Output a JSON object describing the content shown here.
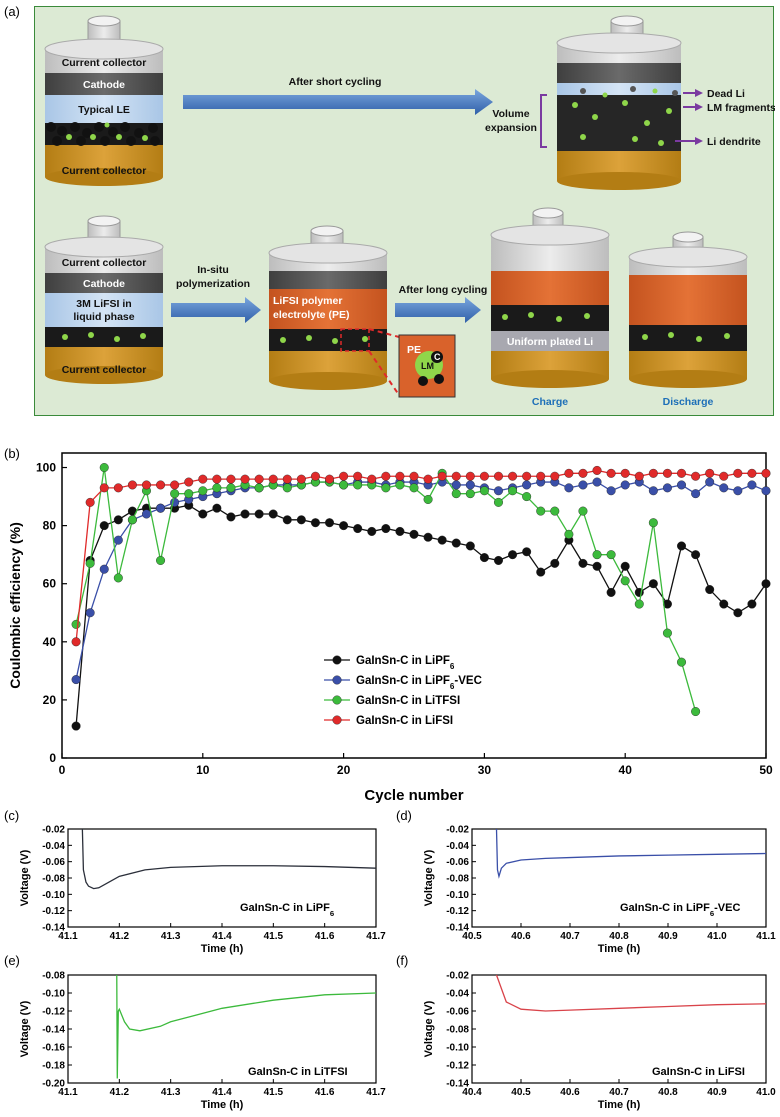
{
  "panels": {
    "a": "(a)",
    "b": "(b)",
    "c": "(c)",
    "d": "(d)",
    "e": "(e)",
    "f": "(f)"
  },
  "schematic": {
    "cell1": {
      "current_collector_top": "Current collector",
      "cathode": "Cathode",
      "electrolyte": "Typical LE",
      "current_collector_bottom": "Current collector"
    },
    "arrow1": "After short cycling",
    "cell2": {
      "volume_expansion_1": "Volume",
      "volume_expansion_2": "expansion",
      "dead_li": "Dead Li",
      "lm_fragments": "LM fragments",
      "li_dendrite": "Li dendrite"
    },
    "cell3": {
      "current_collector_top": "Current collector",
      "cathode": "Cathode",
      "electrolyte_1": "3M LiFSI in",
      "electrolyte_2": "liquid phase",
      "current_collector_bottom": "Current collector"
    },
    "arrow2_1": "In-situ",
    "arrow2_2": "polymerization",
    "cell4": {
      "electrolyte_1": "LiFSI polymer",
      "electrolyte_2": "electrolyte (PE)",
      "inset_pe": "PE",
      "inset_c": "C",
      "inset_lm": "LM"
    },
    "arrow3": "After long cycling",
    "cell5": {
      "plated": "Uniform plated Li",
      "caption": "Charge"
    },
    "cell6": {
      "caption": "Discharge"
    },
    "colors": {
      "background": "#dcead4",
      "arrow": "#3f78c4",
      "cathode": "#5a5a5a",
      "cap": "#d6d6d6",
      "electrolyte": "#b9d3ef",
      "collector": "#c8901f",
      "polymer": "#d9622b",
      "li_particle": "#111111",
      "lm_particle": "#8fd64a",
      "annotation": "#7a3aa0"
    }
  },
  "chart_data": [
    {
      "type": "line",
      "xlabel": "Cycle number",
      "ylabel": "Coulombic efficiency (%)",
      "xlim": [
        0,
        50
      ],
      "ylim": [
        0,
        105
      ],
      "xticks": [
        "0",
        "10",
        "20",
        "30",
        "40",
        "50"
      ],
      "yticks": [
        "0",
        "20",
        "40",
        "60",
        "80",
        "100"
      ],
      "legend_position": "center-left",
      "series": [
        {
          "name": "GaInSn-C in LiPF",
          "sub": "6",
          "suffix": "",
          "color": "#111111",
          "x": [
            1,
            2,
            3,
            4,
            5,
            6,
            7,
            8,
            9,
            10,
            11,
            12,
            13,
            14,
            15,
            16,
            17,
            18,
            19,
            20,
            21,
            22,
            23,
            24,
            25,
            26,
            27,
            28,
            29,
            30,
            31,
            32,
            33,
            34,
            35,
            36,
            37,
            38,
            39,
            40,
            41,
            42,
            43,
            44,
            45,
            46,
            47,
            48,
            49,
            50
          ],
          "y": [
            11,
            68,
            80,
            82,
            85,
            86,
            86,
            86,
            87,
            84,
            86,
            83,
            84,
            84,
            84,
            82,
            82,
            81,
            81,
            80,
            79,
            78,
            79,
            78,
            77,
            76,
            75,
            74,
            73,
            69,
            68,
            70,
            71,
            64,
            67,
            75,
            67,
            66,
            57,
            66,
            57,
            60,
            53,
            73,
            70,
            58,
            53,
            50,
            53,
            60
          ]
        },
        {
          "name": "GaInSn-C in LiPF",
          "sub": "6",
          "suffix": "-VEC",
          "color": "#3a4fa8",
          "x": [
            1,
            2,
            3,
            4,
            5,
            6,
            7,
            8,
            9,
            10,
            11,
            12,
            13,
            14,
            15,
            16,
            17,
            18,
            19,
            20,
            21,
            22,
            23,
            24,
            25,
            26,
            27,
            28,
            29,
            30,
            31,
            32,
            33,
            34,
            35,
            36,
            37,
            38,
            39,
            40,
            41,
            42,
            43,
            44,
            45,
            46,
            47,
            48,
            49,
            50
          ],
          "y": [
            27,
            50,
            65,
            75,
            82,
            84,
            86,
            88,
            89,
            90,
            91,
            92,
            93,
            93,
            94,
            94,
            94,
            95,
            95,
            94,
            95,
            95,
            94,
            95,
            95,
            94,
            95,
            94,
            94,
            93,
            92,
            93,
            94,
            95,
            95,
            93,
            94,
            95,
            92,
            94,
            95,
            92,
            93,
            94,
            91,
            95,
            93,
            92,
            94,
            92
          ]
        },
        {
          "name": "GaInSn-C in LiTFSI",
          "sub": "",
          "suffix": "",
          "color": "#3cba3c",
          "x": [
            1,
            2,
            3,
            4,
            5,
            6,
            7,
            8,
            9,
            10,
            11,
            12,
            13,
            14,
            15,
            16,
            17,
            18,
            19,
            20,
            21,
            22,
            23,
            24,
            25,
            26,
            27,
            28,
            29,
            30,
            31,
            32,
            33,
            34,
            35,
            36,
            37,
            38,
            39,
            40,
            41,
            42,
            43,
            44,
            45
          ],
          "y": [
            46,
            67,
            100,
            62,
            82,
            92,
            68,
            91,
            91,
            92,
            93,
            93,
            94,
            93,
            94,
            93,
            94,
            95,
            95,
            94,
            94,
            94,
            93,
            94,
            93,
            89,
            98,
            91,
            91,
            92,
            88,
            92,
            90,
            85,
            85,
            77,
            85,
            70,
            70,
            61,
            53,
            81,
            43,
            33,
            16
          ]
        },
        {
          "name": "GaInSn-C in LiFSI",
          "sub": "",
          "suffix": "",
          "color": "#e02a2a",
          "x": [
            1,
            2,
            3,
            4,
            5,
            6,
            7,
            8,
            9,
            10,
            11,
            12,
            13,
            14,
            15,
            16,
            17,
            18,
            19,
            20,
            21,
            22,
            23,
            24,
            25,
            26,
            27,
            28,
            29,
            30,
            31,
            32,
            33,
            34,
            35,
            36,
            37,
            38,
            39,
            40,
            41,
            42,
            43,
            44,
            45,
            46,
            47,
            48,
            49,
            50
          ],
          "y": [
            40,
            88,
            93,
            93,
            94,
            94,
            94,
            94,
            95,
            96,
            96,
            96,
            96,
            96,
            96,
            96,
            96,
            97,
            96,
            97,
            97,
            96,
            97,
            97,
            97,
            96,
            97,
            97,
            97,
            97,
            97,
            97,
            97,
            97,
            97,
            98,
            98,
            99,
            98,
            98,
            97,
            98,
            98,
            98,
            97,
            98,
            97,
            98,
            98,
            98
          ]
        }
      ]
    },
    {
      "type": "line",
      "panel": "c",
      "xlabel": "Time (h)",
      "ylabel": "Voltage (V)",
      "xlim": [
        41.1,
        41.7
      ],
      "ylim": [
        -0.14,
        -0.02
      ],
      "xticks": [
        "41.1",
        "41.2",
        "41.3",
        "41.4",
        "41.5",
        "41.6",
        "41.7"
      ],
      "yticks": [
        "-0.02",
        "-0.04",
        "-0.06",
        "-0.08",
        "-0.10",
        "-0.12",
        "-0.14"
      ],
      "label": "GaInSn-C in LiPF",
      "label_sub": "6",
      "label_suffix": "",
      "color": "#2b2f3a",
      "x": [
        41.128,
        41.13,
        41.135,
        41.14,
        41.15,
        41.16,
        41.18,
        41.2,
        41.25,
        41.3,
        41.4,
        41.5,
        41.6,
        41.7
      ],
      "y": [
        -0.02,
        -0.07,
        -0.085,
        -0.09,
        -0.093,
        -0.092,
        -0.085,
        -0.078,
        -0.07,
        -0.067,
        -0.065,
        -0.065,
        -0.066,
        -0.068
      ]
    },
    {
      "type": "line",
      "panel": "d",
      "xlabel": "Time (h)",
      "ylabel": "Voltage (V)",
      "xlim": [
        40.5,
        41.1
      ],
      "ylim": [
        -0.14,
        -0.02
      ],
      "xticks": [
        "40.5",
        "40.6",
        "40.7",
        "40.8",
        "40.9",
        "41.0",
        "41.1"
      ],
      "yticks": [
        "-0.02",
        "-0.04",
        "-0.06",
        "-0.08",
        "-0.10",
        "-0.12",
        "-0.14"
      ],
      "label": "GaInSn-C in LiPF",
      "label_sub": "6",
      "label_suffix": "-VEC",
      "color": "#3a4fa8",
      "x": [
        40.55,
        40.552,
        40.555,
        40.56,
        40.57,
        40.6,
        40.65,
        40.7,
        40.8,
        40.9,
        41.0,
        41.1
      ],
      "y": [
        -0.02,
        -0.07,
        -0.078,
        -0.068,
        -0.062,
        -0.058,
        -0.056,
        -0.055,
        -0.053,
        -0.052,
        -0.051,
        -0.05
      ]
    },
    {
      "type": "line",
      "panel": "e",
      "xlabel": "Time (h)",
      "ylabel": "Voltage (V)",
      "xlim": [
        41.1,
        41.7
      ],
      "ylim": [
        -0.2,
        -0.08
      ],
      "xticks": [
        "41.1",
        "41.2",
        "41.3",
        "41.4",
        "41.5",
        "41.6",
        "41.7"
      ],
      "yticks": [
        "-0.08",
        "-0.10",
        "-0.12",
        "-0.14",
        "-0.16",
        "-0.18",
        "-0.20"
      ],
      "label": "GaInSn-C in LiTFSI",
      "label_sub": "",
      "label_suffix": "",
      "color": "#3cba3c",
      "x": [
        41.195,
        41.196,
        41.198,
        41.2,
        41.21,
        41.22,
        41.24,
        41.28,
        41.3,
        41.4,
        41.5,
        41.6,
        41.7
      ],
      "y": [
        -0.08,
        -0.195,
        -0.12,
        -0.118,
        -0.132,
        -0.14,
        -0.142,
        -0.137,
        -0.132,
        -0.117,
        -0.108,
        -0.102,
        -0.1
      ]
    },
    {
      "type": "line",
      "panel": "f",
      "xlabel": "Time (h)",
      "ylabel": "Voltage (V)",
      "xlim": [
        40.4,
        41.0
      ],
      "ylim": [
        -0.14,
        -0.02
      ],
      "xticks": [
        "40.4",
        "40.5",
        "40.6",
        "40.7",
        "40.8",
        "40.9",
        "41.0"
      ],
      "yticks": [
        "-0.02",
        "-0.04",
        "-0.06",
        "-0.08",
        "-0.10",
        "-0.12",
        "-0.14"
      ],
      "label": "GaInSn-C in LiFSI",
      "label_sub": "",
      "label_suffix": "",
      "color": "#d9434a",
      "x": [
        40.45,
        40.47,
        40.5,
        40.55,
        40.6,
        40.7,
        40.8,
        40.9,
        41.0
      ],
      "y": [
        -0.02,
        -0.05,
        -0.058,
        -0.06,
        -0.059,
        -0.057,
        -0.055,
        -0.053,
        -0.052
      ]
    }
  ]
}
